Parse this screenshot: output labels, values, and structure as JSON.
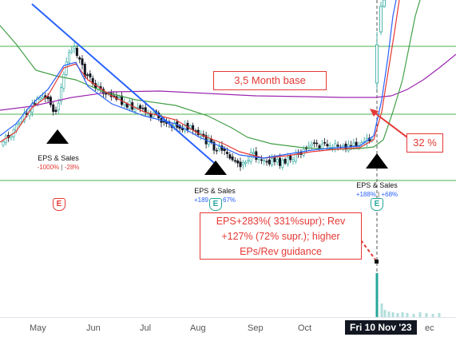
{
  "time_axis": {
    "labels": [
      "May",
      "Jun",
      "Jul",
      "Aug",
      "Sep",
      "Oct",
      "ec"
    ],
    "cursor_date": "Fri 10 Nov '23"
  },
  "annotations": {
    "base_label": "3,5 Month base",
    "pct_label": "32 %",
    "note": "EPS+283%( 331%supr); Rev +127% (72% supr.); higher EPs/Rev guidance"
  },
  "earnings": [
    {
      "title": "EPS & Sales",
      "eps": "-1000%",
      "sep": " | ",
      "rev": "-28%",
      "eps_color": "#e53935",
      "rev_color": "#e53935",
      "badge": "E",
      "badge_color": "#e53935"
    },
    {
      "title": "EPS & Sales",
      "eps": "+189",
      "sep": "",
      "rev": "67%",
      "eps_color": "#2962ff",
      "rev_color": "#2962ff",
      "badge": "E",
      "badge_color": "#26a69a"
    },
    {
      "title": "EPS & Sales",
      "eps": "+188%",
      "sep": " | ",
      "rev": "+68%",
      "eps_color": "#2962ff",
      "rev_color": "#2962ff",
      "badge": "E",
      "badge_color": "#26a69a"
    }
  ],
  "colors": {
    "up": "#26a69a",
    "down": "#131722",
    "ma_red": "#e53935",
    "ma_blue": "#2962ff",
    "ma_green": "#43a047",
    "ma_purple": "#9c27b0",
    "trendline": "#2962ff",
    "hline": "#4caf50",
    "annotation": "#e53935"
  }
}
